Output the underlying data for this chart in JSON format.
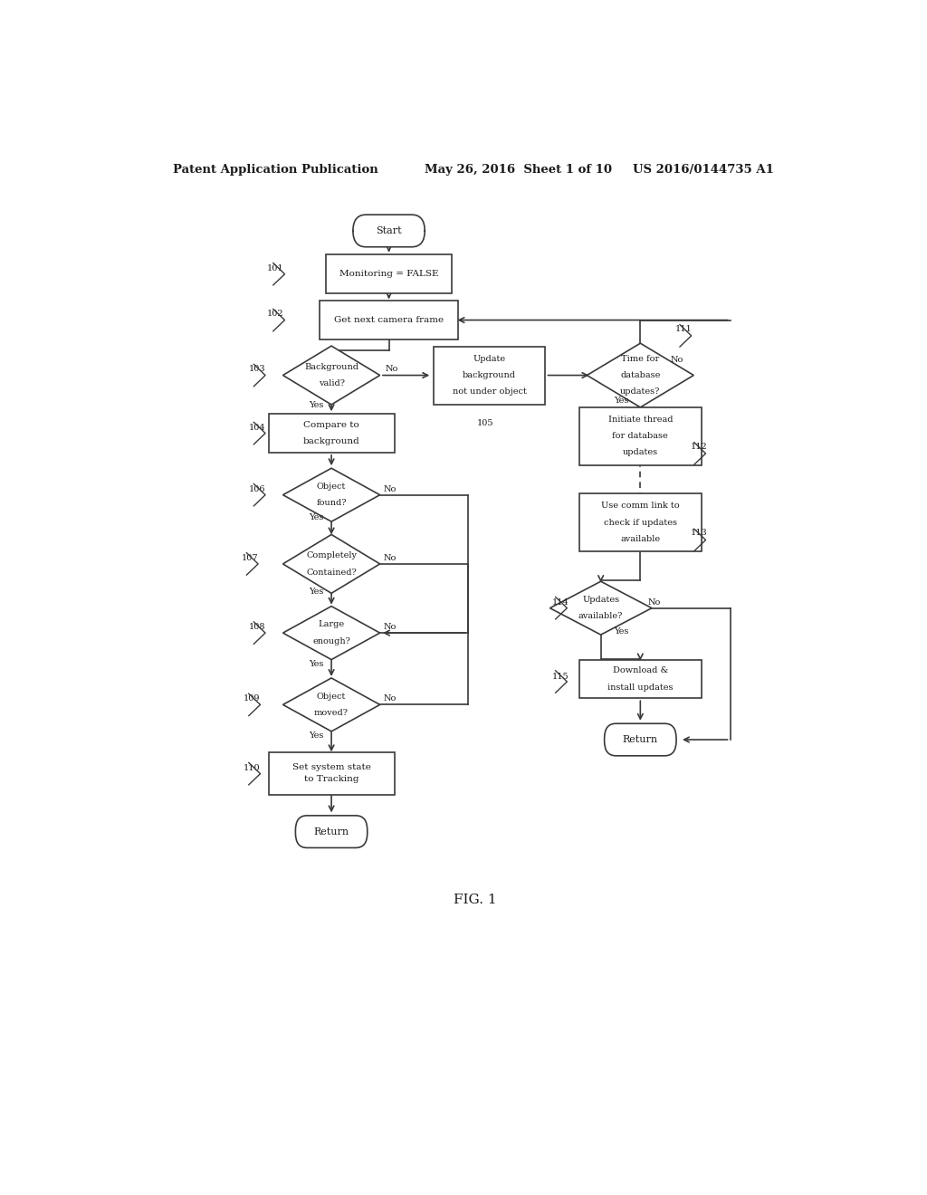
{
  "bg_color": "#ffffff",
  "line_color": "#3a3a3a",
  "text_color": "#1a1a1a",
  "header_left": "Patent Application Publication",
  "header_mid": "May 26, 2016  Sheet 1 of 10",
  "header_right": "US 2016/0144735 A1",
  "fig_label": "FIG. 1"
}
